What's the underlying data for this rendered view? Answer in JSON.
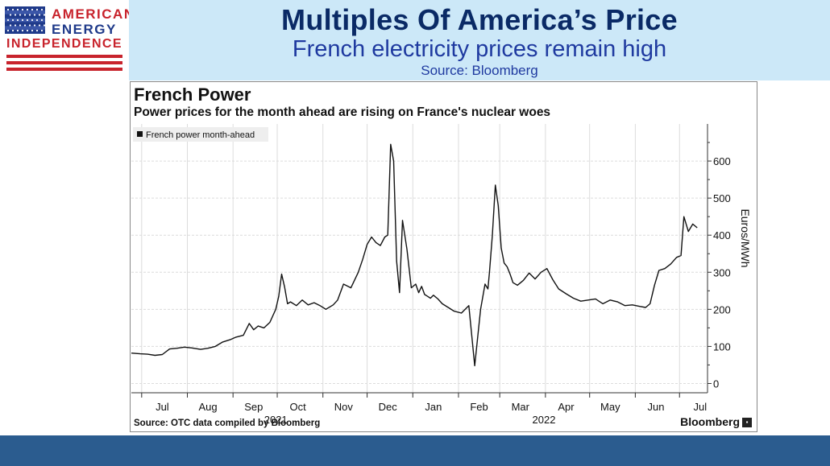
{
  "header": {
    "title": "Multiples Of America’s Price",
    "subtitle": "French electricity prices remain high",
    "source": "Source: Bloomberg"
  },
  "logo": {
    "line1": "AMERICAN",
    "line2": "ENERGY",
    "line3": "INDEPENDENCE",
    "colors": {
      "blue": "#1f3a8a",
      "red": "#c8232c"
    }
  },
  "colors": {
    "header_bg": "#cce8f8",
    "title": "#0a2a66",
    "subtitle": "#1f3aa0",
    "footer_bar": "#2b5c8f",
    "line": "#111111"
  },
  "chart": {
    "title": "French Power",
    "subtitle": "Power prices for the month ahead are rising on France's nuclear woes",
    "source": "Source: OTC data compiled by Bloomberg",
    "brand": "Bloomberg"
  },
  "chart_data": {
    "type": "line",
    "title": "French Power",
    "subtitle": "Power prices for the month ahead are rising on France's nuclear woes",
    "ylabel": "Euros/MWh",
    "xlabel": "",
    "ylim": [
      0,
      700
    ],
    "xlim": [
      "2021-06-24",
      "2022-07-20"
    ],
    "yticks": [
      0,
      100,
      200,
      300,
      400,
      500,
      600
    ],
    "xticks": [
      {
        "date": "2021-07-15",
        "label": "Jul"
      },
      {
        "date": "2021-08-15",
        "label": "Aug"
      },
      {
        "date": "2021-09-15",
        "label": "Sep"
      },
      {
        "date": "2021-10-15",
        "label": "Oct"
      },
      {
        "date": "2021-11-15",
        "label": "Nov"
      },
      {
        "date": "2021-12-15",
        "label": "Dec"
      },
      {
        "date": "2022-01-15",
        "label": "Jan"
      },
      {
        "date": "2022-02-15",
        "label": "Feb"
      },
      {
        "date": "2022-03-15",
        "label": "Mar"
      },
      {
        "date": "2022-04-15",
        "label": "Apr"
      },
      {
        "date": "2022-05-15",
        "label": "May"
      },
      {
        "date": "2022-06-15",
        "label": "Jun"
      },
      {
        "date": "2022-07-15",
        "label": "Jul"
      }
    ],
    "year_labels": [
      {
        "date": "2021-09-30",
        "label": "2021"
      },
      {
        "date": "2022-03-31",
        "label": "2022"
      }
    ],
    "grid": true,
    "legend_position": "top-left",
    "series": [
      {
        "name": "French power month-ahead",
        "color": "#111111",
        "x": [
          "2021-06-24",
          "2021-06-30",
          "2021-07-05",
          "2021-07-10",
          "2021-07-15",
          "2021-07-20",
          "2021-07-25",
          "2021-07-30",
          "2021-08-04",
          "2021-08-10",
          "2021-08-15",
          "2021-08-20",
          "2021-08-25",
          "2021-08-30",
          "2021-09-03",
          "2021-09-08",
          "2021-09-12",
          "2021-09-15",
          "2021-09-18",
          "2021-09-22",
          "2021-09-26",
          "2021-09-30",
          "2021-10-02",
          "2021-10-04",
          "2021-10-06",
          "2021-10-08",
          "2021-10-10",
          "2021-10-14",
          "2021-10-18",
          "2021-10-22",
          "2021-10-26",
          "2021-10-30",
          "2021-11-03",
          "2021-11-08",
          "2021-11-11",
          "2021-11-15",
          "2021-11-20",
          "2021-11-25",
          "2021-11-28",
          "2021-12-01",
          "2021-12-04",
          "2021-12-07",
          "2021-12-10",
          "2021-12-13",
          "2021-12-15",
          "2021-12-17",
          "2021-12-19",
          "2021-12-21",
          "2021-12-23",
          "2021-12-25",
          "2021-12-28",
          "2021-12-31",
          "2022-01-03",
          "2022-01-05",
          "2022-01-07",
          "2022-01-09",
          "2022-01-11",
          "2022-01-13",
          "2022-01-15",
          "2022-01-18",
          "2022-01-21",
          "2022-01-25",
          "2022-01-29",
          "2022-02-03",
          "2022-02-08",
          "2022-02-12",
          "2022-02-16",
          "2022-02-19",
          "2022-02-21",
          "2022-02-22",
          "2022-02-24",
          "2022-02-26",
          "2022-02-28",
          "2022-03-02",
          "2022-03-04",
          "2022-03-06",
          "2022-03-08",
          "2022-03-10",
          "2022-03-13",
          "2022-03-17",
          "2022-03-21",
          "2022-03-25",
          "2022-03-29",
          "2022-04-02",
          "2022-04-06",
          "2022-04-10",
          "2022-04-15",
          "2022-04-20",
          "2022-04-25",
          "2022-04-30",
          "2022-05-05",
          "2022-05-10",
          "2022-05-15",
          "2022-05-20",
          "2022-05-25",
          "2022-05-30",
          "2022-06-04",
          "2022-06-08",
          "2022-06-11",
          "2022-06-14",
          "2022-06-17",
          "2022-06-21",
          "2022-06-25",
          "2022-06-29",
          "2022-07-02",
          "2022-07-04",
          "2022-07-07",
          "2022-07-10",
          "2022-07-13"
        ],
        "values": [
          82,
          80,
          79,
          76,
          78,
          93,
          95,
          98,
          96,
          92,
          95,
          100,
          112,
          118,
          125,
          130,
          162,
          145,
          155,
          150,
          165,
          200,
          235,
          295,
          260,
          215,
          220,
          210,
          225,
          212,
          218,
          210,
          200,
          212,
          225,
          268,
          258,
          300,
          335,
          375,
          395,
          380,
          372,
          395,
          400,
          645,
          600,
          330,
          245,
          440,
          362,
          258,
          268,
          245,
          262,
          240,
          235,
          230,
          238,
          228,
          215,
          205,
          195,
          190,
          210,
          48,
          200,
          268,
          255,
          300,
          400,
          535,
          480,
          365,
          325,
          315,
          295,
          272,
          265,
          278,
          298,
          282,
          300,
          310,
          280,
          255,
          242,
          230,
          222,
          225,
          228,
          215,
          225,
          220,
          210,
          212,
          208,
          205,
          215,
          265,
          305,
          310,
          322,
          340,
          345,
          450,
          410,
          430,
          420
        ]
      }
    ]
  }
}
